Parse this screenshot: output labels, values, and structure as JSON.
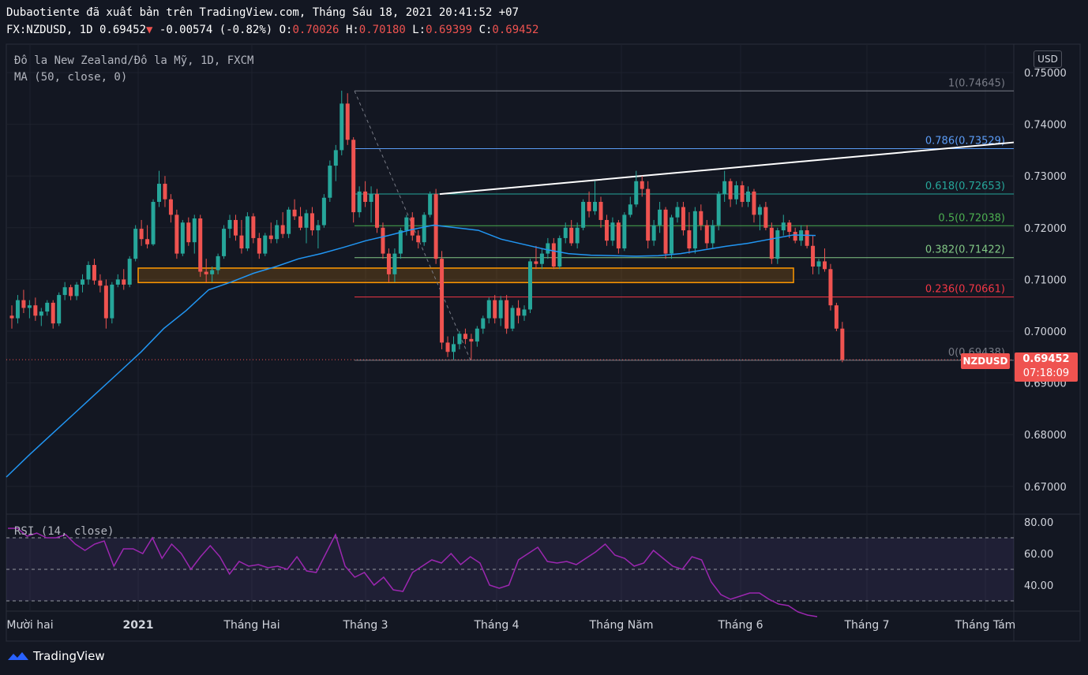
{
  "header": {
    "published": "Dubaotiente đã xuất bản trên TradingView.com, Tháng Sáu 18, 2021 20:41:52 +07",
    "symbol_line": "FX:NZDUSD, 1D 0.69452",
    "arrow": "▼",
    "change": "-0.00574 (-0.82%)",
    "o_label": "O:",
    "o_value": "0.70026",
    "h_label": "H:",
    "h_value": "0.70180",
    "l_label": "L:",
    "l_value": "0.69399",
    "c_label": "C:",
    "c_value": "0.69452"
  },
  "legend": {
    "instrument": "Đô la New Zealand/Đô la Mỹ, 1D, FXCM",
    "ma": "MA (50, close, 0)",
    "rsi": "RSI (14, close)"
  },
  "price_scale": {
    "currency": "USD",
    "symbol_tag": "NZDUSD",
    "last_price": "0.69452",
    "countdown": "07:18:09"
  },
  "brand": {
    "name": "TradingView"
  },
  "colors": {
    "background": "#131722",
    "up": "#26a69a",
    "down": "#ef5350",
    "ma": "#2196f3",
    "rsi": "#9c27b0",
    "zone_border": "#ff9800",
    "trendline": "#ffffff"
  },
  "chart_data": {
    "type": "candlestick",
    "x_labels": [
      "Mười hai",
      "2021",
      "Tháng Hai",
      "Tháng 3",
      "Tháng 4",
      "Tháng Năm",
      "Tháng 6",
      "Tháng 7",
      "Tháng Tám"
    ],
    "y_ticks": [
      "0.75000",
      "0.74000",
      "0.73000",
      "0.72000",
      "0.71000",
      "0.70000",
      "0.69000",
      "0.68000",
      "0.67000"
    ],
    "rsi_ticks": [
      "80.00",
      "60.00",
      "40.00"
    ],
    "ylim": [
      0.6625,
      0.7527
    ],
    "fib_levels": [
      {
        "label": "1(0.74645)",
        "value": 0.74645,
        "color": "#787b86"
      },
      {
        "label": "0.786(0.73529)",
        "value": 0.73529,
        "color": "#5b9cf6"
      },
      {
        "label": "0.618(0.72653)",
        "value": 0.72653,
        "color": "#26a69a"
      },
      {
        "label": "0.5(0.72038)",
        "value": 0.72038,
        "color": "#4caf50"
      },
      {
        "label": "0.382(0.71422)",
        "value": 0.71422,
        "color": "#81c784"
      },
      {
        "label": "0.236(0.70661)",
        "value": 0.70661,
        "color": "#f23645"
      },
      {
        "label": "0(0.69438)",
        "value": 0.69438,
        "color": "#787b86"
      }
    ],
    "zone": {
      "low": 0.7094,
      "high": 0.7122
    },
    "candles": [
      [
        0.703,
        0.705,
        0.7005,
        0.7025
      ],
      [
        0.7025,
        0.707,
        0.7015,
        0.706
      ],
      [
        0.706,
        0.708,
        0.7035,
        0.7045
      ],
      [
        0.7045,
        0.706,
        0.7025,
        0.705
      ],
      [
        0.705,
        0.7065,
        0.702,
        0.703
      ],
      [
        0.703,
        0.7045,
        0.701,
        0.7038
      ],
      [
        0.7038,
        0.706,
        0.703,
        0.7055
      ],
      [
        0.7055,
        0.706,
        0.7005,
        0.7015
      ],
      [
        0.7015,
        0.7075,
        0.701,
        0.707
      ],
      [
        0.707,
        0.7095,
        0.706,
        0.7085
      ],
      [
        0.7085,
        0.709,
        0.706,
        0.7068
      ],
      [
        0.7068,
        0.7095,
        0.706,
        0.709
      ],
      [
        0.709,
        0.711,
        0.7075,
        0.71
      ],
      [
        0.71,
        0.7135,
        0.709,
        0.7128
      ],
      [
        0.7128,
        0.714,
        0.709,
        0.7098
      ],
      [
        0.7098,
        0.711,
        0.7075,
        0.7088
      ],
      [
        0.7088,
        0.71,
        0.7005,
        0.7025
      ],
      [
        0.7025,
        0.7095,
        0.7015,
        0.709
      ],
      [
        0.709,
        0.711,
        0.7085,
        0.71
      ],
      [
        0.71,
        0.712,
        0.708,
        0.709
      ],
      [
        0.709,
        0.7145,
        0.7085,
        0.714
      ],
      [
        0.714,
        0.7205,
        0.7135,
        0.7198
      ],
      [
        0.7198,
        0.7215,
        0.7165,
        0.7178
      ],
      [
        0.7178,
        0.7205,
        0.716,
        0.7168
      ],
      [
        0.7168,
        0.7255,
        0.7165,
        0.725
      ],
      [
        0.725,
        0.731,
        0.724,
        0.7285
      ],
      [
        0.7285,
        0.73,
        0.724,
        0.7255
      ],
      [
        0.7255,
        0.7265,
        0.721,
        0.7225
      ],
      [
        0.7225,
        0.7235,
        0.714,
        0.715
      ],
      [
        0.715,
        0.7215,
        0.7145,
        0.721
      ],
      [
        0.721,
        0.722,
        0.7165,
        0.7172
      ],
      [
        0.7172,
        0.7225,
        0.715,
        0.7218
      ],
      [
        0.7218,
        0.7225,
        0.7105,
        0.7115
      ],
      [
        0.7115,
        0.714,
        0.7095,
        0.711
      ],
      [
        0.711,
        0.7125,
        0.7095,
        0.7118
      ],
      [
        0.7118,
        0.715,
        0.711,
        0.7145
      ],
      [
        0.7145,
        0.7205,
        0.714,
        0.7198
      ],
      [
        0.7198,
        0.7225,
        0.718,
        0.7215
      ],
      [
        0.7215,
        0.7225,
        0.7175,
        0.7185
      ],
      [
        0.7185,
        0.7215,
        0.715,
        0.716
      ],
      [
        0.716,
        0.723,
        0.7155,
        0.7222
      ],
      [
        0.7222,
        0.7228,
        0.717,
        0.718
      ],
      [
        0.718,
        0.719,
        0.714,
        0.715
      ],
      [
        0.715,
        0.719,
        0.7145,
        0.7185
      ],
      [
        0.7185,
        0.721,
        0.717,
        0.7178
      ],
      [
        0.7178,
        0.7215,
        0.717,
        0.7205
      ],
      [
        0.7205,
        0.723,
        0.718,
        0.7188
      ],
      [
        0.7188,
        0.724,
        0.718,
        0.7235
      ],
      [
        0.7235,
        0.7255,
        0.7215,
        0.7222
      ],
      [
        0.7222,
        0.724,
        0.7195,
        0.72
      ],
      [
        0.72,
        0.7235,
        0.717,
        0.7228
      ],
      [
        0.7228,
        0.724,
        0.7185,
        0.7195
      ],
      [
        0.7195,
        0.7215,
        0.716,
        0.7205
      ],
      [
        0.7205,
        0.7265,
        0.72,
        0.7258
      ],
      [
        0.7258,
        0.733,
        0.725,
        0.732
      ],
      [
        0.732,
        0.736,
        0.729,
        0.735
      ],
      [
        0.735,
        0.7465,
        0.734,
        0.744
      ],
      [
        0.744,
        0.746,
        0.736,
        0.737
      ],
      [
        0.737,
        0.7375,
        0.721,
        0.723
      ],
      [
        0.723,
        0.728,
        0.722,
        0.727
      ],
      [
        0.727,
        0.729,
        0.724,
        0.725
      ],
      [
        0.725,
        0.728,
        0.721,
        0.7265
      ],
      [
        0.7265,
        0.7275,
        0.719,
        0.72
      ],
      [
        0.72,
        0.721,
        0.714,
        0.715
      ],
      [
        0.715,
        0.716,
        0.7095,
        0.711
      ],
      [
        0.711,
        0.716,
        0.7095,
        0.715
      ],
      [
        0.715,
        0.72,
        0.714,
        0.7195
      ],
      [
        0.7195,
        0.7225,
        0.7185,
        0.722
      ],
      [
        0.722,
        0.723,
        0.7175,
        0.7185
      ],
      [
        0.7185,
        0.7195,
        0.716,
        0.7172
      ],
      [
        0.7172,
        0.723,
        0.7165,
        0.7225
      ],
      [
        0.7225,
        0.727,
        0.722,
        0.7265
      ],
      [
        0.7265,
        0.7275,
        0.713,
        0.714
      ],
      [
        0.714,
        0.7155,
        0.6965,
        0.6978
      ],
      [
        0.6978,
        0.699,
        0.695,
        0.696
      ],
      [
        0.696,
        0.699,
        0.6945,
        0.6975
      ],
      [
        0.6975,
        0.7,
        0.6965,
        0.6995
      ],
      [
        0.6995,
        0.7005,
        0.6975,
        0.6985
      ],
      [
        0.6985,
        0.6995,
        0.6945,
        0.698
      ],
      [
        0.698,
        0.701,
        0.697,
        0.7005
      ],
      [
        0.7005,
        0.703,
        0.6995,
        0.7025
      ],
      [
        0.7025,
        0.7065,
        0.7015,
        0.706
      ],
      [
        0.706,
        0.707,
        0.7015,
        0.7025
      ],
      [
        0.7025,
        0.7068,
        0.701,
        0.706
      ],
      [
        0.706,
        0.707,
        0.6995,
        0.7005
      ],
      [
        0.7005,
        0.705,
        0.7,
        0.7045
      ],
      [
        0.7045,
        0.706,
        0.7015,
        0.703
      ],
      [
        0.703,
        0.705,
        0.702,
        0.7042
      ],
      [
        0.7042,
        0.714,
        0.7035,
        0.7135
      ],
      [
        0.7135,
        0.7165,
        0.712,
        0.713
      ],
      [
        0.713,
        0.716,
        0.712,
        0.715
      ],
      [
        0.715,
        0.718,
        0.714,
        0.717
      ],
      [
        0.717,
        0.718,
        0.712,
        0.7125
      ],
      [
        0.7125,
        0.7185,
        0.712,
        0.718
      ],
      [
        0.718,
        0.721,
        0.717,
        0.72
      ],
      [
        0.72,
        0.7215,
        0.7165,
        0.717
      ],
      [
        0.717,
        0.721,
        0.716,
        0.72
      ],
      [
        0.72,
        0.7255,
        0.7195,
        0.725
      ],
      [
        0.725,
        0.727,
        0.722,
        0.7232
      ],
      [
        0.7232,
        0.729,
        0.7225,
        0.725
      ],
      [
        0.725,
        0.726,
        0.72,
        0.7215
      ],
      [
        0.7215,
        0.7225,
        0.7165,
        0.7175
      ],
      [
        0.7175,
        0.722,
        0.7165,
        0.721
      ],
      [
        0.721,
        0.7215,
        0.715,
        0.716
      ],
      [
        0.716,
        0.723,
        0.7155,
        0.7225
      ],
      [
        0.7225,
        0.726,
        0.722,
        0.7245
      ],
      [
        0.7245,
        0.731,
        0.724,
        0.729
      ],
      [
        0.729,
        0.73,
        0.726,
        0.7275
      ],
      [
        0.7275,
        0.729,
        0.716,
        0.7175
      ],
      [
        0.7175,
        0.7215,
        0.7165,
        0.7205
      ],
      [
        0.7205,
        0.725,
        0.719,
        0.7235
      ],
      [
        0.7235,
        0.724,
        0.714,
        0.715
      ],
      [
        0.715,
        0.7225,
        0.714,
        0.722
      ],
      [
        0.722,
        0.725,
        0.721,
        0.724
      ],
      [
        0.724,
        0.725,
        0.7185,
        0.7195
      ],
      [
        0.7195,
        0.723,
        0.715,
        0.716
      ],
      [
        0.716,
        0.724,
        0.715,
        0.7232
      ],
      [
        0.7232,
        0.7245,
        0.7195,
        0.7205
      ],
      [
        0.7205,
        0.7215,
        0.716,
        0.717
      ],
      [
        0.717,
        0.7215,
        0.716,
        0.7205
      ],
      [
        0.7205,
        0.727,
        0.7195,
        0.7265
      ],
      [
        0.7265,
        0.731,
        0.725,
        0.729
      ],
      [
        0.729,
        0.7295,
        0.724,
        0.7255
      ],
      [
        0.7255,
        0.729,
        0.7245,
        0.7282
      ],
      [
        0.7282,
        0.729,
        0.724,
        0.725
      ],
      [
        0.725,
        0.728,
        0.724,
        0.727
      ],
      [
        0.727,
        0.7275,
        0.721,
        0.7225
      ],
      [
        0.7225,
        0.7245,
        0.7195,
        0.724
      ],
      [
        0.724,
        0.725,
        0.7195,
        0.72
      ],
      [
        0.72,
        0.721,
        0.713,
        0.714
      ],
      [
        0.714,
        0.72,
        0.713,
        0.7195
      ],
      [
        0.7195,
        0.7225,
        0.7185,
        0.721
      ],
      [
        0.721,
        0.7215,
        0.718,
        0.7192
      ],
      [
        0.7192,
        0.72,
        0.717,
        0.7175
      ],
      [
        0.7175,
        0.7205,
        0.7165,
        0.7195
      ],
      [
        0.7195,
        0.7205,
        0.716,
        0.7165
      ],
      [
        0.7165,
        0.7185,
        0.711,
        0.7125
      ],
      [
        0.7125,
        0.714,
        0.711,
        0.7135
      ],
      [
        0.7135,
        0.716,
        0.7115,
        0.712
      ],
      [
        0.712,
        0.713,
        0.704,
        0.705
      ],
      [
        0.705,
        0.7055,
        0.7,
        0.7005
      ],
      [
        0.7005,
        0.7018,
        0.694,
        0.6945
      ]
    ],
    "ma": [
      0.6718,
      0.676,
      0.68,
      0.684,
      0.688,
      0.692,
      0.696,
      0.7005,
      0.704,
      0.708,
      0.7095,
      0.7112,
      0.7125,
      0.714,
      0.715,
      0.7162,
      0.7175,
      0.7185,
      0.7196,
      0.7205,
      0.72,
      0.7195,
      0.7178,
      0.7168,
      0.7158,
      0.715,
      0.7147,
      0.7146,
      0.7145,
      0.7146,
      0.715,
      0.7157,
      0.7164,
      0.717,
      0.7178,
      0.7186,
      0.7185
    ],
    "rsi": [
      76,
      76,
      71,
      73,
      70,
      70,
      72,
      66,
      62,
      66,
      68,
      52,
      63,
      63,
      60,
      70,
      57,
      66,
      60,
      50,
      58,
      65,
      58,
      47,
      55,
      52,
      53,
      51,
      52,
      50,
      58,
      49,
      48,
      60,
      72,
      52,
      45,
      48,
      40,
      45,
      37,
      36,
      48,
      52,
      56,
      54,
      60,
      53,
      58,
      54,
      40,
      38,
      40,
      56,
      60,
      64,
      55,
      54,
      55,
      53,
      57,
      61,
      66,
      59,
      57,
      52,
      54,
      62,
      57,
      52,
      50,
      58,
      56,
      42,
      34,
      31,
      33,
      35,
      35,
      31,
      28,
      27,
      23,
      21,
      20
    ],
    "rsi_levels": [
      70,
      50,
      30
    ],
    "fib_anchor_high": 0.74645,
    "fib_anchor_low": 0.69438,
    "trendline": [
      0.7265,
      0.7365
    ]
  }
}
